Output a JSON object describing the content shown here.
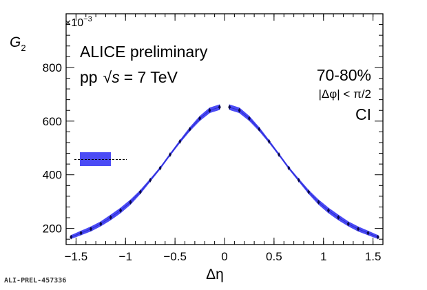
{
  "chart_data": {
    "type": "scatter",
    "xlabel": "Δη",
    "ylabel": "G",
    "ylabel_subscript": "2",
    "y_multiplier": "×10",
    "y_multiplier_exp": "−3",
    "xlim": [
      -1.6,
      1.6
    ],
    "ylim": [
      140,
      1000
    ],
    "xticks": [
      -1.5,
      -1,
      -0.5,
      0,
      0.5,
      1,
      1.5
    ],
    "xtick_labels": [
      "−1.5",
      "−1",
      "−0.5",
      "0",
      "0.5",
      "1",
      "1.5"
    ],
    "yticks": [
      200,
      400,
      600,
      800
    ],
    "ytick_labels": [
      "200",
      "400",
      "600",
      "800"
    ],
    "annotations": {
      "experiment": "ALICE preliminary",
      "system": "pp",
      "sqrt_symbol": "√",
      "energy_var": "s",
      "energy": "= 7 TeV",
      "centrality": "70-80%",
      "phi_cut": "|Δφ| < π/2",
      "charge": "CI"
    },
    "legend": {
      "placement": "left",
      "style": "band with dashed line"
    },
    "series": [
      {
        "color": "#4b4bf5",
        "marker_color": "#0a0a4a",
        "x": [
          -1.55,
          -1.45,
          -1.35,
          -1.25,
          -1.15,
          -1.05,
          -0.95,
          -0.85,
          -0.75,
          -0.65,
          -0.55,
          -0.45,
          -0.35,
          -0.25,
          -0.15,
          -0.05,
          0.05,
          0.15,
          0.25,
          0.35,
          0.45,
          0.55,
          0.65,
          0.75,
          0.85,
          0.95,
          1.05,
          1.15,
          1.25,
          1.35,
          1.45,
          1.55
        ],
        "y": [
          168,
          183,
          198,
          217,
          241,
          267,
          298,
          336,
          380,
          425,
          475,
          524,
          570,
          610,
          640,
          652,
          652,
          640,
          610,
          570,
          524,
          475,
          425,
          380,
          336,
          298,
          267,
          241,
          217,
          198,
          183,
          168
        ],
        "y_err": [
          6,
          7,
          8,
          8,
          9,
          9,
          8,
          6,
          4,
          3,
          3,
          4,
          6,
          8,
          9,
          9,
          9,
          9,
          8,
          6,
          4,
          3,
          3,
          4,
          6,
          8,
          9,
          9,
          8,
          8,
          7,
          6
        ]
      }
    ]
  },
  "footer": {
    "label": "ALI-PREL-457336"
  }
}
